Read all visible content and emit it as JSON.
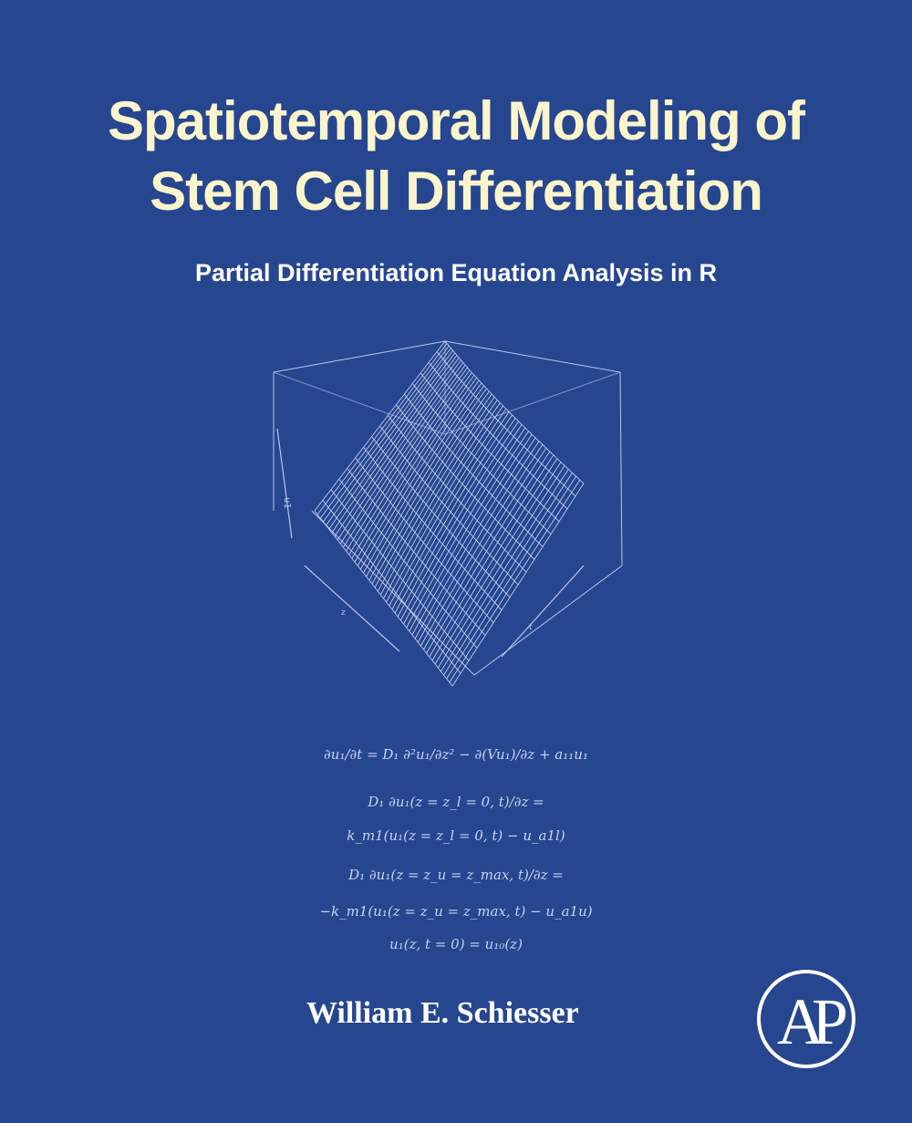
{
  "cover": {
    "title_line1": "Spatiotemporal Modeling of",
    "title_line2": "Stem Cell Differentiation",
    "subtitle": "Partial Differentiation Equation Analysis in R",
    "author": "William E. Schiesser",
    "publisher_logo": "AP",
    "colors": {
      "background": "#264690",
      "title": "#fbf5cc",
      "text": "#ffffff",
      "lines": "#b9c6ec"
    }
  },
  "plot": {
    "z_axis_label": "u1",
    "x_axis_label": "z",
    "y_axis_label": "t"
  },
  "equations": {
    "pde": "∂u₁/∂t = D₁ ∂²u₁/∂z² − ∂(Vu₁)/∂z + a₁₁u₁",
    "bc1_lhs": "D₁ ∂u₁(z = z_l = 0, t)/∂z =",
    "bc1_rhs": "k_m1(u₁(z = z_l = 0, t) − u_a1l)",
    "bc2_lhs": "D₁ ∂u₁(z = z_u = z_max, t)/∂z =",
    "bc2_rhs": "−k_m1(u₁(z = z_u = z_max, t) − u_a1u)",
    "ic": "u₁(z, t = 0) = u₁₀(z)"
  }
}
